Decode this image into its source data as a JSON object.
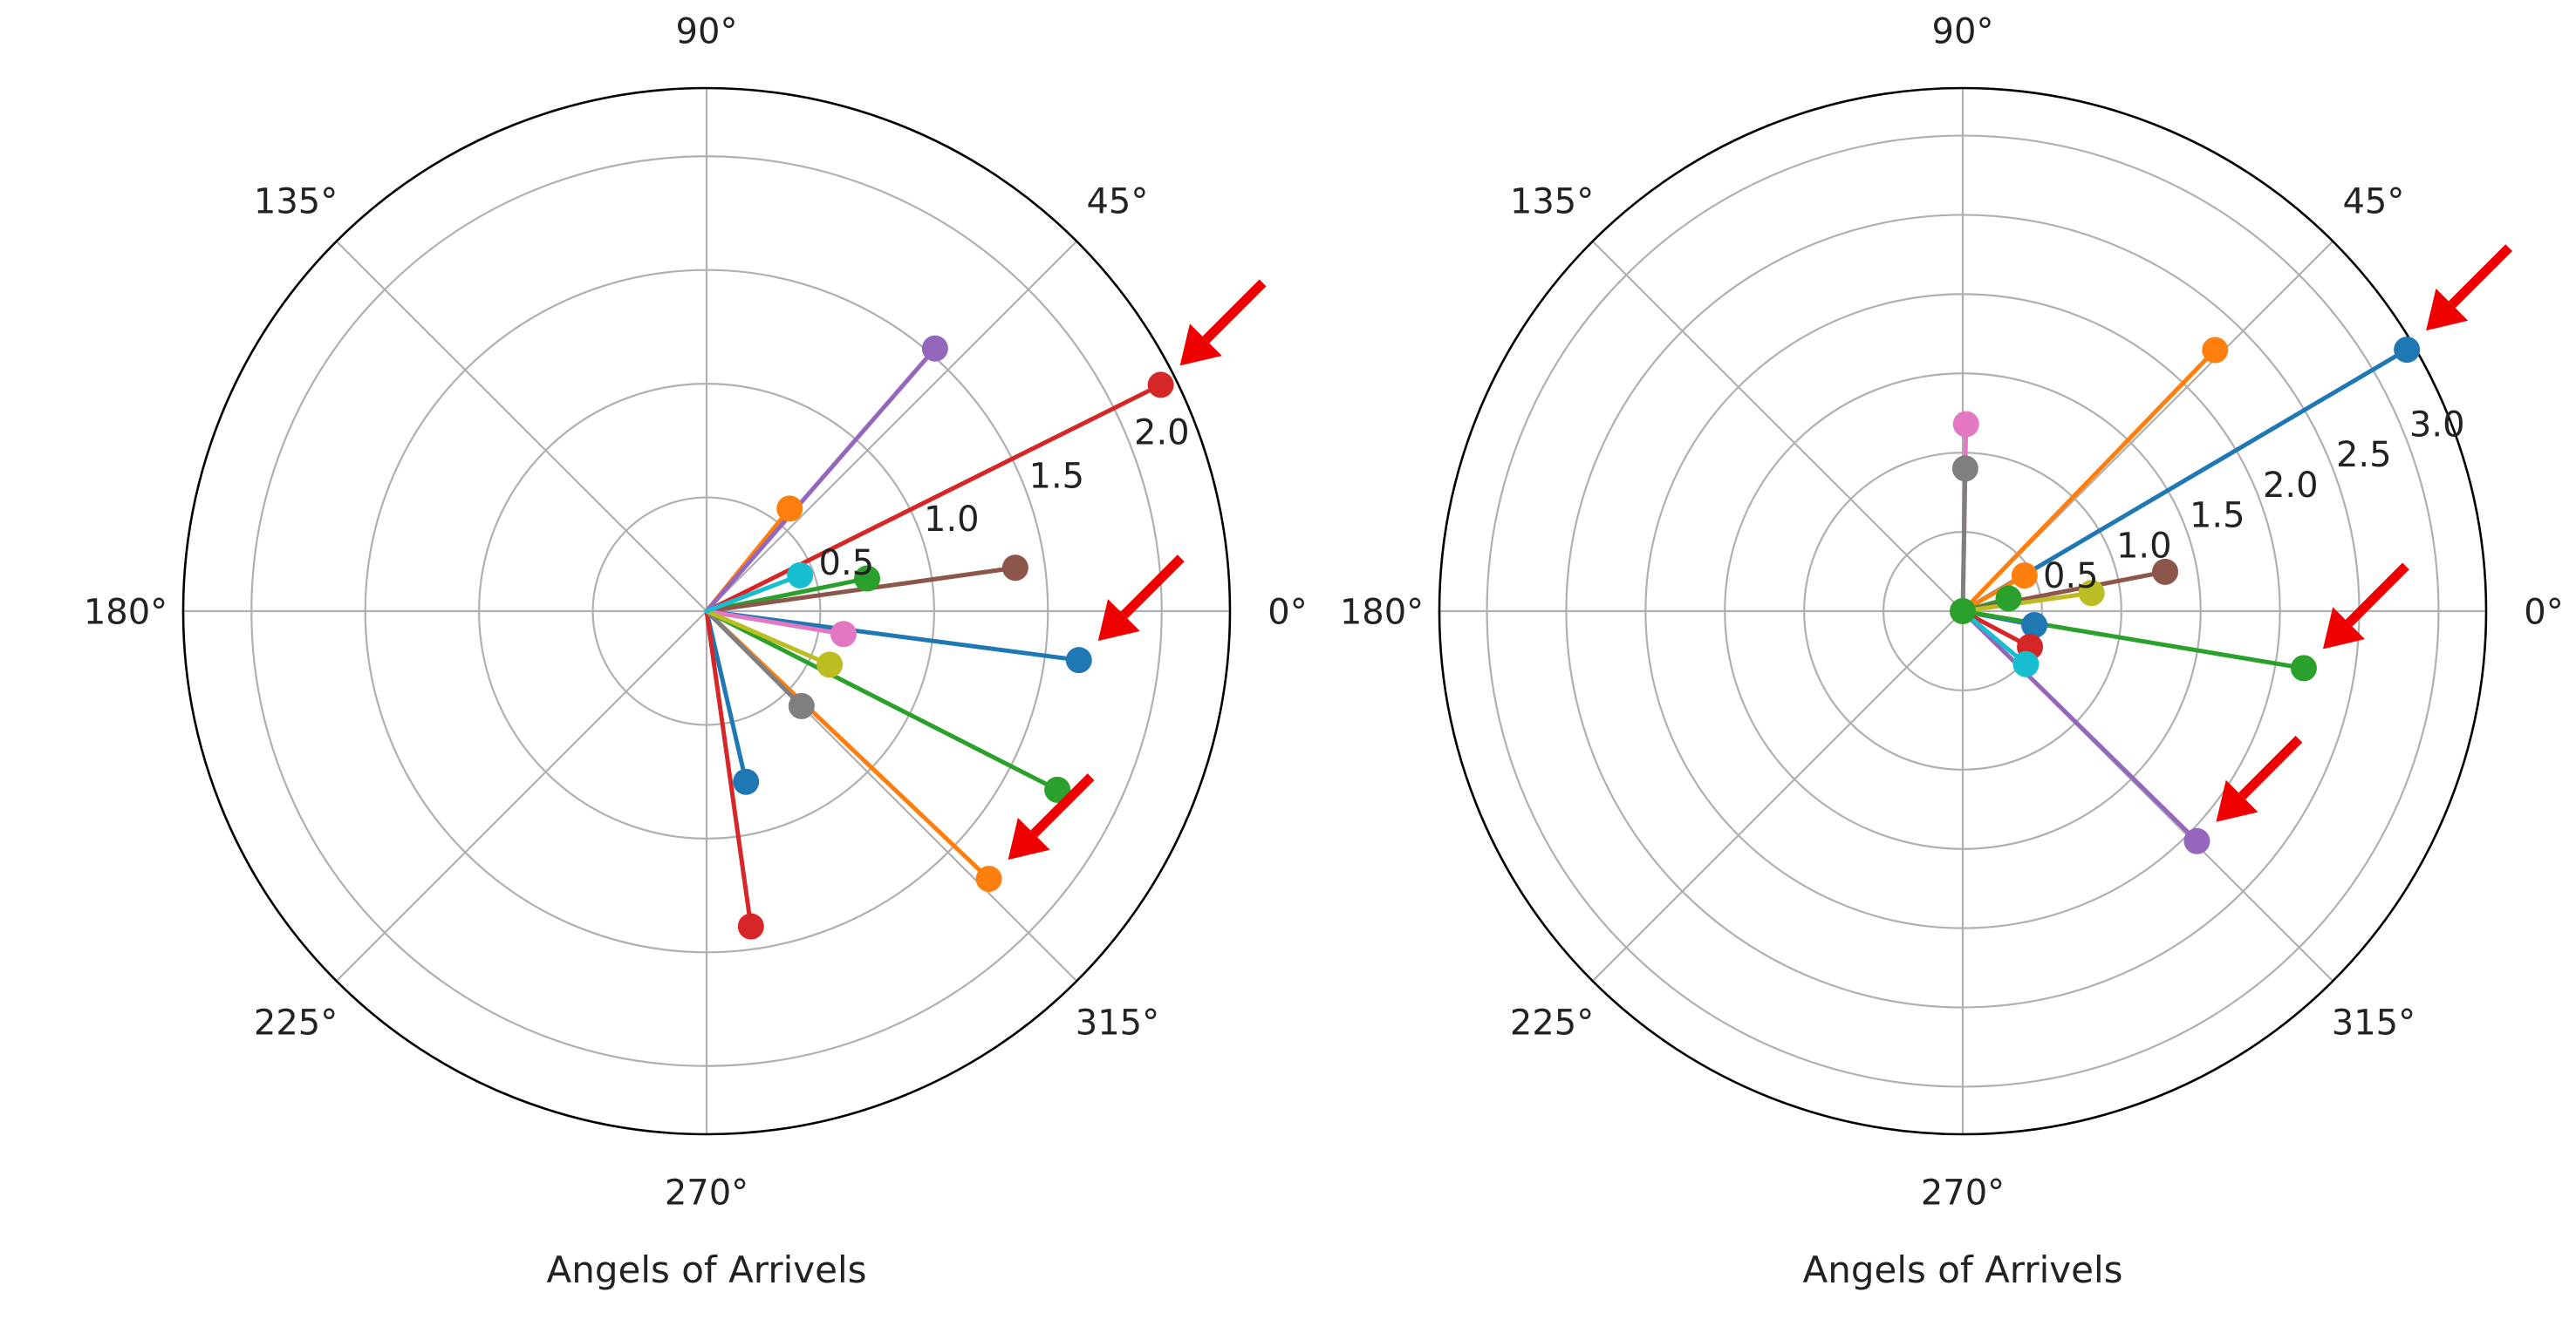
{
  "chart_data": [
    {
      "type": "polar-stem",
      "xlabel": "Angels of Arrivels",
      "theta_ticks": [
        "0°",
        "45°",
        "90°",
        "135°",
        "180°",
        "225°",
        "270°",
        "315°"
      ],
      "r_ticks": [
        "0.5",
        "1.0",
        "1.5",
        "2.0"
      ],
      "r_tick_values": [
        0.5,
        1.0,
        1.5,
        2.0
      ],
      "rmax": 2.3,
      "r_label_angle_deg": 22.5,
      "grid": true,
      "points": [
        {
          "theta_deg": -7.5,
          "r": 1.65,
          "color": "#1f77b4"
        },
        {
          "theta_deg": -77,
          "r": 0.77,
          "color": "#1f77b4"
        },
        {
          "theta_deg": -43.5,
          "r": 1.71,
          "color": "#ff7f0e"
        },
        {
          "theta_deg": 51,
          "r": 0.58,
          "color": "#ff7f0e"
        },
        {
          "theta_deg": -27,
          "r": 1.73,
          "color": "#2ca02c"
        },
        {
          "theta_deg": 11.5,
          "r": 0.72,
          "color": "#2ca02c"
        },
        {
          "theta_deg": 26.5,
          "r": 2.23,
          "color": "#d62728"
        },
        {
          "theta_deg": -82,
          "r": 1.4,
          "color": "#d62728"
        },
        {
          "theta_deg": 49,
          "r": 1.53,
          "color": "#9467bd"
        },
        {
          "theta_deg": 8,
          "r": 1.37,
          "color": "#8c564b"
        },
        {
          "theta_deg": -9.5,
          "r": 0.61,
          "color": "#e377c2"
        },
        {
          "theta_deg": -45,
          "r": 0.59,
          "color": "#7f7f7f"
        },
        {
          "theta_deg": -23.5,
          "r": 0.59,
          "color": "#bcbd22"
        },
        {
          "theta_deg": 21,
          "r": 0.44,
          "color": "#17becf"
        }
      ],
      "arrow_targets": [
        2,
        0,
        6
      ]
    },
    {
      "type": "polar-stem",
      "xlabel": "Angels of Arrivels",
      "theta_ticks": [
        "0°",
        "45°",
        "90°",
        "135°",
        "180°",
        "225°",
        "270°",
        "315°"
      ],
      "r_ticks": [
        "0.5",
        "1.0",
        "1.5",
        "2.0",
        "2.5",
        "3.0"
      ],
      "r_tick_values": [
        0.5,
        1.0,
        1.5,
        2.0,
        2.5,
        3.0
      ],
      "rmax": 3.3,
      "r_label_angle_deg": 22.5,
      "grid": true,
      "points": [
        {
          "theta_deg": 30.5,
          "r": 3.25,
          "color": "#1f77b4"
        },
        {
          "theta_deg": -11,
          "r": 0.46,
          "color": "#1f77b4"
        },
        {
          "theta_deg": 46,
          "r": 2.29,
          "color": "#ff7f0e"
        },
        {
          "theta_deg": 30,
          "r": 0.45,
          "color": "#ff7f0e"
        },
        {
          "theta_deg": -9.5,
          "r": 2.18,
          "color": "#2ca02c"
        },
        {
          "theta_deg": 0,
          "r": 0.0,
          "color": "#2ca02c"
        },
        {
          "theta_deg": 15.5,
          "r": 0.3,
          "color": "#2ca02c"
        },
        {
          "theta_deg": -28,
          "r": 0.48,
          "color": "#d62728"
        },
        {
          "theta_deg": -44.5,
          "r": 2.07,
          "color": "#9467bd"
        },
        {
          "theta_deg": 11,
          "r": 1.3,
          "color": "#8c564b"
        },
        {
          "theta_deg": 89,
          "r": 1.18,
          "color": "#e377c2"
        },
        {
          "theta_deg": 89,
          "r": 0.9,
          "color": "#7f7f7f"
        },
        {
          "theta_deg": 8,
          "r": 0.82,
          "color": "#bcbd22"
        },
        {
          "theta_deg": -40,
          "r": 0.52,
          "color": "#17becf"
        }
      ],
      "arrow_targets": [
        0,
        4,
        8
      ]
    }
  ]
}
